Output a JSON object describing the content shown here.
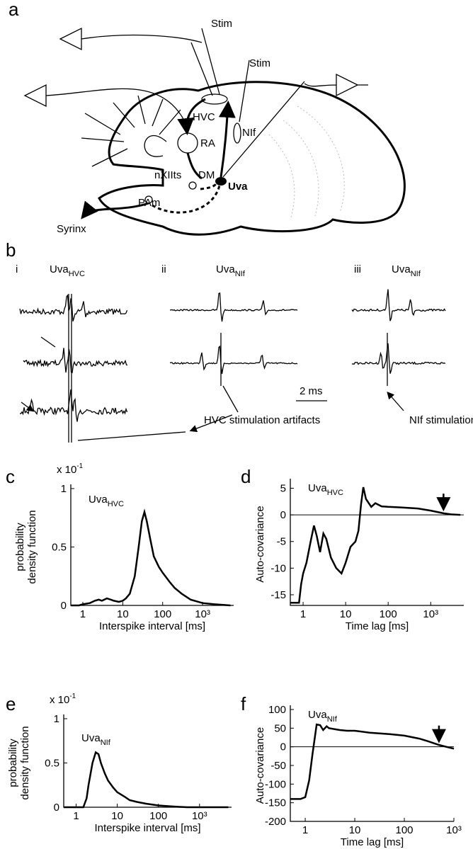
{
  "panels": {
    "a": {
      "label": "a",
      "regions": [
        "Stim",
        "Stim",
        "HVC",
        "NIf",
        "RA",
        "nXIIts",
        "DM",
        "Uva",
        "PAm",
        "Syrinx"
      ]
    },
    "b": {
      "label": "b",
      "subpanels": [
        {
          "label": "i",
          "text": "Uva",
          "subscript": "HVC"
        },
        {
          "label": "ii",
          "text": "Uva",
          "subscript": "NIf"
        },
        {
          "label": "iii",
          "text": "Uva",
          "subscript": "NIf"
        }
      ],
      "scale_bar": "2 ms",
      "annotations": [
        "HVC stimulation artifacts",
        "NIf  stimulation artifacts"
      ]
    }
  },
  "chart_data": [
    {
      "type": "line",
      "panel": "c",
      "annotation": {
        "text": "Uva",
        "subscript": "HVC"
      },
      "multiplier": {
        "text": "x 10",
        "superscript": "-1"
      },
      "ylabel": [
        "probability",
        "density function"
      ],
      "xlabel": "Interspike interval [ms]",
      "log_x": true,
      "color": "#000000",
      "x": [
        0.5,
        0.8,
        1,
        1.5,
        2,
        2.5,
        3,
        4,
        5,
        6,
        8,
        10,
        12,
        15,
        20,
        25,
        30,
        35,
        40,
        50,
        60,
        80,
        100,
        150,
        200,
        300,
        500,
        1000,
        2000,
        5000
      ],
      "values": [
        0,
        0,
        0.01,
        0.02,
        0.04,
        0.05,
        0.04,
        0.06,
        0.05,
        0.04,
        0.03,
        0.04,
        0.06,
        0.1,
        0.25,
        0.5,
        0.72,
        0.8,
        0.72,
        0.55,
        0.42,
        0.33,
        0.28,
        0.2,
        0.15,
        0.1,
        0.05,
        0.02,
        0.01,
        0
      ],
      "xlim": [
        0.5,
        6000
      ],
      "xticks": [
        1,
        10,
        100,
        {
          "value": 1000,
          "label": "10³"
        }
      ],
      "ylim": [
        0,
        1
      ],
      "yticks": [
        0,
        0.5,
        1
      ]
    },
    {
      "type": "line",
      "panel": "d",
      "annotation": {
        "text": "Uva",
        "subscript": "HVC"
      },
      "ylabel": [
        "Auto-covariance"
      ],
      "xlabel": "Time lag [ms]",
      "log_x": true,
      "color": "#000000",
      "zero_line": true,
      "arrow_at": 2000,
      "x": [
        0.5,
        0.8,
        0.9,
        1,
        1.2,
        1.5,
        1.8,
        2.1,
        2.5,
        3,
        3.5,
        4.5,
        6,
        8,
        10,
        13,
        17,
        20,
        23,
        26,
        30,
        40,
        50,
        70,
        100,
        200,
        500,
        1000,
        2000,
        3000,
        5000
      ],
      "values": [
        -16.5,
        -16.5,
        -13,
        -11,
        -9,
        -5,
        -2,
        -4,
        -7,
        -3.5,
        -4.5,
        -8,
        -10,
        -11,
        -9,
        -6,
        -5,
        -3,
        2,
        5.2,
        3,
        1.5,
        2.2,
        1.6,
        1.5,
        1.4,
        1.2,
        0.8,
        0.3,
        0.1,
        0
      ],
      "xlim": [
        0.5,
        6000
      ],
      "xticks": [
        1,
        10,
        100,
        {
          "value": 1000,
          "label": "10³"
        }
      ],
      "ylim": [
        -17,
        6
      ],
      "yticks": [
        -15,
        -10,
        -5,
        0,
        5
      ]
    },
    {
      "type": "line",
      "panel": "e",
      "annotation": {
        "text": "Uva",
        "subscript": "NIf"
      },
      "multiplier": {
        "text": "x 10",
        "superscript": "-1"
      },
      "ylabel": [
        "probability",
        "density function"
      ],
      "xlabel": "Interspike interval [ms]",
      "log_x": true,
      "color": "#000000",
      "x": [
        0.5,
        1,
        1.5,
        1.8,
        2,
        2.5,
        3,
        3.5,
        4,
        5,
        6,
        8,
        10,
        15,
        20,
        30,
        50,
        100,
        200,
        300,
        500,
        1000,
        5000
      ],
      "values": [
        0,
        0,
        0,
        0.1,
        0.25,
        0.5,
        0.62,
        0.6,
        0.5,
        0.38,
        0.3,
        0.22,
        0.17,
        0.12,
        0.08,
        0.06,
        0.04,
        0.02,
        0.01,
        0.005,
        0,
        0,
        0
      ],
      "xlim": [
        0.5,
        6000
      ],
      "xticks": [
        1,
        10,
        100,
        {
          "value": 1000,
          "label": "10³"
        }
      ],
      "ylim": [
        0,
        1
      ],
      "yticks": [
        0,
        0.5,
        1
      ]
    },
    {
      "type": "line",
      "panel": "f",
      "annotation": {
        "text": "Uva",
        "subscript": "NIf"
      },
      "ylabel": [
        "Auto-covariance"
      ],
      "xlabel": "Time lag [ms]",
      "log_x": true,
      "color": "#000000",
      "zero_line": true,
      "arrow_at": 500,
      "x": [
        0.5,
        0.8,
        1,
        1.2,
        1.4,
        1.7,
        2,
        2.3,
        2.7,
        3,
        4,
        5,
        7,
        10,
        20,
        50,
        100,
        200,
        300,
        500,
        700,
        1000
      ],
      "values": [
        -140,
        -140,
        -135,
        -90,
        -20,
        60,
        58,
        45,
        55,
        50,
        47,
        45,
        43,
        43,
        38,
        34,
        30,
        22,
        15,
        5,
        0,
        -5
      ],
      "xlim": [
        0.5,
        1000
      ],
      "xticks": [
        1,
        10,
        100,
        {
          "value": 1000,
          "label": "10³"
        }
      ],
      "ylim": [
        -200,
        100
      ],
      "yticks": [
        -200,
        -150,
        -100,
        -50,
        0,
        50,
        100
      ]
    }
  ]
}
